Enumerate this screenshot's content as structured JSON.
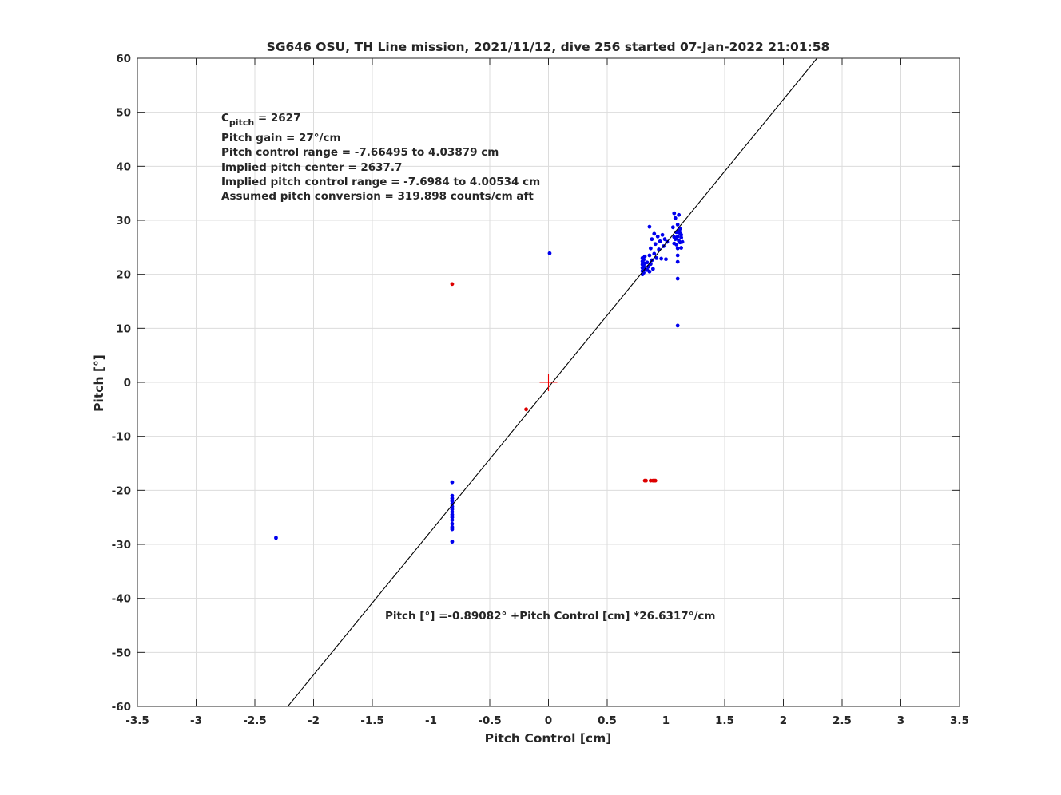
{
  "chart_data": {
    "type": "scatter",
    "title": "SG646 OSU, TH Line mission, 2021/11/12, dive 256 started 07-Jan-2022 21:01:58",
    "xlabel": "Pitch Control [cm]",
    "ylabel": "Pitch [°]",
    "xlim": [
      -3.5,
      3.5
    ],
    "ylim": [
      -60,
      60
    ],
    "xticks": [
      -3.5,
      -3,
      -2.5,
      -2,
      -1.5,
      -1,
      -0.5,
      0,
      0.5,
      1,
      1.5,
      2,
      2.5,
      3,
      3.5
    ],
    "yticks": [
      -60,
      -50,
      -40,
      -30,
      -20,
      -10,
      0,
      10,
      20,
      30,
      40,
      50,
      60
    ],
    "xtick_labels": [
      "-3.5",
      "-3",
      "-2.5",
      "-2",
      "-1.5",
      "-1",
      "-0.5",
      "0",
      "0.5",
      "1",
      "1.5",
      "2",
      "2.5",
      "3",
      "3.5"
    ],
    "ytick_labels": [
      "-60",
      "-50",
      "-40",
      "-30",
      "-20",
      "-10",
      "0",
      "10",
      "20",
      "30",
      "40",
      "50",
      "60"
    ],
    "grid": true,
    "colors": {
      "valid": "#0000ee",
      "rejected": "#dd0000",
      "fit": "#000000",
      "center": "#ee0000",
      "grid": "#dcdcdc",
      "axis": "#262626"
    },
    "annotations": {
      "c_pitch_main": "C",
      "c_pitch_sub": "pitch",
      "c_pitch_value": " = 2627",
      "lines": [
        "Pitch gain = 27°/cm",
        "Pitch control range = -7.66495 to 4.03879 cm",
        "Implied pitch center = 2637.7",
        "Implied pitch control range = -7.6984 to 4.00534 cm",
        "Assumed pitch conversion = 319.898 counts/cm aft"
      ],
      "fit_equation": "Pitch [°] =-0.89082° +Pitch Control [cm] *26.6317°/cm"
    },
    "fit_line": {
      "intercept": -0.89082,
      "slope": 26.6317
    },
    "center_marker": {
      "x": 0,
      "y": 0
    },
    "series": [
      {
        "color": "#dd0000",
        "points": [
          [
            -0.82,
            18.2
          ],
          [
            -0.19,
            -5.0
          ],
          [
            0.82,
            -18.2
          ],
          [
            0.83,
            -18.2
          ],
          [
            0.87,
            -18.2
          ],
          [
            0.89,
            -18.2
          ],
          [
            0.9,
            -18.2
          ],
          [
            0.91,
            -18.2
          ]
        ]
      },
      {
        "color": "#0000ee",
        "points": [
          [
            0.01,
            23.9
          ],
          [
            -2.32,
            -28.8
          ],
          [
            1.1,
            10.5
          ],
          [
            1.1,
            19.2
          ],
          [
            -0.82,
            -18.5
          ],
          [
            -0.82,
            -21.0
          ],
          [
            -0.82,
            -21.5
          ],
          [
            -0.82,
            -22.0
          ],
          [
            -0.82,
            -22.5
          ],
          [
            -0.82,
            -23.0
          ],
          [
            -0.82,
            -23.5
          ],
          [
            -0.82,
            -24.0
          ],
          [
            -0.82,
            -24.5
          ],
          [
            -0.82,
            -25.0
          ],
          [
            -0.82,
            -25.5
          ],
          [
            -0.82,
            -26.2
          ],
          [
            -0.82,
            -26.8
          ],
          [
            -0.82,
            -27.2
          ],
          [
            -0.82,
            -29.5
          ],
          [
            0.8,
            20.0
          ],
          [
            0.8,
            20.6
          ],
          [
            0.8,
            21.2
          ],
          [
            0.8,
            21.8
          ],
          [
            0.8,
            22.4
          ],
          [
            0.8,
            23.0
          ],
          [
            0.81,
            20.3
          ],
          [
            0.81,
            21.5
          ],
          [
            0.81,
            22.7
          ],
          [
            0.82,
            21.0
          ],
          [
            0.82,
            22.0
          ],
          [
            0.82,
            23.3
          ],
          [
            0.84,
            20.8
          ],
          [
            0.84,
            22.2
          ],
          [
            0.85,
            21.4
          ],
          [
            0.86,
            20.5
          ],
          [
            0.86,
            23.5
          ],
          [
            0.87,
            21.9
          ],
          [
            0.87,
            24.8
          ],
          [
            0.88,
            22.6
          ],
          [
            0.88,
            26.5
          ],
          [
            0.89,
            21.0
          ],
          [
            0.9,
            23.8
          ],
          [
            0.9,
            27.5
          ],
          [
            0.91,
            25.6
          ],
          [
            0.92,
            23.0
          ],
          [
            0.93,
            27.0
          ],
          [
            0.94,
            24.6
          ],
          [
            0.95,
            26.1
          ],
          [
            0.96,
            22.9
          ],
          [
            0.97,
            27.3
          ],
          [
            0.98,
            25.2
          ],
          [
            0.99,
            26.5
          ],
          [
            1.0,
            22.8
          ],
          [
            1.01,
            26.0
          ],
          [
            0.86,
            28.8
          ],
          [
            1.06,
            28.7
          ],
          [
            1.07,
            31.3
          ],
          [
            1.08,
            30.4
          ],
          [
            1.08,
            26.5
          ],
          [
            1.09,
            27.8
          ],
          [
            1.09,
            25.5
          ],
          [
            1.1,
            29.2
          ],
          [
            1.1,
            27.0
          ],
          [
            1.1,
            24.8
          ],
          [
            1.1,
            23.5
          ],
          [
            1.1,
            22.3
          ],
          [
            1.11,
            31.0
          ],
          [
            1.11,
            28.1
          ],
          [
            1.11,
            26.2
          ],
          [
            1.12,
            27.6
          ],
          [
            1.12,
            25.9
          ],
          [
            1.12,
            28.4
          ],
          [
            1.13,
            26.8
          ],
          [
            1.13,
            24.9
          ],
          [
            1.13,
            27.3
          ],
          [
            1.14,
            26.0
          ],
          [
            1.07,
            26.9
          ],
          [
            1.07,
            25.7
          ],
          [
            1.09,
            26.6
          ]
        ]
      }
    ]
  }
}
